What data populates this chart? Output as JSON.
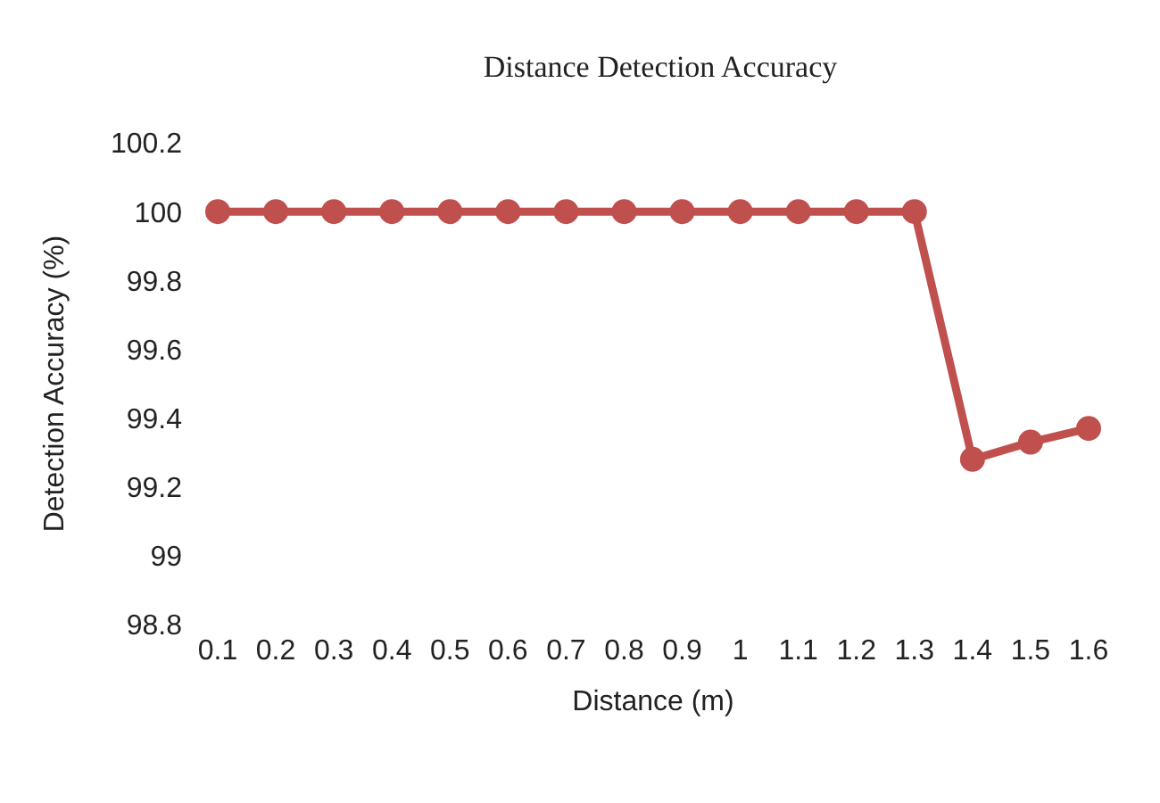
{
  "chart_data": {
    "type": "line",
    "title": "Distance Detection Accuracy",
    "xlabel": "Distance (m)",
    "ylabel": "Detection Accuracy (%)",
    "categories": [
      "0.1",
      "0.2",
      "0.3",
      "0.4",
      "0.5",
      "0.6",
      "0.7",
      "0.8",
      "0.9",
      "1",
      "1.1",
      "1.2",
      "1.3",
      "1.4",
      "1.5",
      "1.6"
    ],
    "series": [
      {
        "color": "#c0504d",
        "values": [
          100,
          100,
          100,
          100,
          100,
          100,
          100,
          100,
          100,
          100,
          100,
          100,
          100,
          99.28,
          99.33,
          99.37
        ]
      }
    ],
    "ylim": [
      98.8,
      100.2
    ],
    "yticks": [
      98.8,
      99,
      99.2,
      99.4,
      99.6,
      99.8,
      100,
      100.2
    ],
    "grid": false,
    "legend": false,
    "marker": "circle",
    "line_style": "solid"
  }
}
